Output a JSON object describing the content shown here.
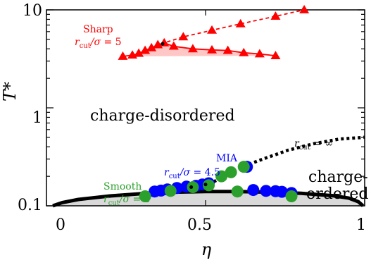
{
  "chart_data": {
    "type": "scatter",
    "xlabel": "η",
    "ylabel": "T*",
    "xlim": [
      0,
      1
    ],
    "ylim": [
      0.1,
      10
    ],
    "yscale": "log",
    "x_ticks": [
      "0",
      "0.5",
      "1"
    ],
    "y_ticks": [
      "0.1",
      "1",
      "10"
    ],
    "grid": false,
    "annotations": {
      "disordered": "charge-disordered",
      "ordered_line1": "charge-",
      "ordered_line2": "ordered",
      "rcut_inf": "r_cut = ∞"
    },
    "series": [
      {
        "name": "Sharp r_cut/σ = 5",
        "label_line1": "Sharp",
        "label_line2": "r_cut/σ = 5",
        "color": "#ff0000",
        "marker": "triangle",
        "points": [
          [
            0.24,
            3.35
          ],
          [
            0.27,
            3.45
          ],
          [
            0.29,
            3.6
          ],
          [
            0.31,
            3.85
          ],
          [
            0.33,
            4.1
          ],
          [
            0.35,
            4.4
          ],
          [
            0.37,
            4.6
          ],
          [
            0.4,
            4.25
          ],
          [
            0.46,
            4.0
          ],
          [
            0.52,
            3.9
          ],
          [
            0.57,
            3.85
          ],
          [
            0.62,
            3.65
          ],
          [
            0.67,
            3.55
          ],
          [
            0.72,
            3.4
          ]
        ],
        "critical_line": [
          [
            0.36,
            4.5
          ],
          [
            0.43,
            5.3
          ],
          [
            0.52,
            6.2
          ],
          [
            0.61,
            7.2
          ],
          [
            0.72,
            8.6
          ],
          [
            0.81,
            10
          ]
        ]
      },
      {
        "name": "MIA r_cut/σ = 4.5",
        "label_line1": "MIA",
        "label_line2": "r_cut/σ = 4.5",
        "color": "#0000ff",
        "marker": "circle",
        "points": [
          [
            0.34,
            0.14
          ],
          [
            0.36,
            0.143
          ],
          [
            0.38,
            0.147
          ],
          [
            0.41,
            0.152
          ],
          [
            0.44,
            0.157
          ],
          [
            0.47,
            0.16
          ],
          [
            0.49,
            0.165
          ],
          [
            0.51,
            0.17
          ],
          [
            0.63,
            0.25
          ],
          [
            0.65,
            0.145
          ],
          [
            0.69,
            0.142
          ],
          [
            0.72,
            0.141
          ],
          [
            0.74,
            0.139
          ],
          [
            0.77,
            0.135
          ]
        ]
      },
      {
        "name": "Smooth r_cut/σ = 5",
        "label_line1": "Smooth",
        "label_line2": "r_cut/σ = 5",
        "color": "#2ca02c",
        "marker": "circle",
        "points": [
          [
            0.31,
            0.125
          ],
          [
            0.39,
            0.142
          ],
          [
            0.46,
            0.155
          ],
          [
            0.51,
            0.162
          ],
          [
            0.55,
            0.2
          ],
          [
            0.58,
            0.22
          ],
          [
            0.62,
            0.25
          ],
          [
            0.6,
            0.14
          ],
          [
            0.77,
            0.125
          ]
        ]
      }
    ],
    "rcut_inf_line": [
      [
        0.51,
        0.165
      ],
      [
        0.6,
        0.24
      ],
      [
        0.68,
        0.3
      ],
      [
        0.76,
        0.37
      ],
      [
        0.84,
        0.43
      ],
      [
        0.92,
        0.48
      ],
      [
        1.0,
        0.5
      ]
    ],
    "coexistence_curve": [
      [
        0.02,
        0.1
      ],
      [
        0.05,
        0.108
      ],
      [
        0.1,
        0.116
      ],
      [
        0.2,
        0.126
      ],
      [
        0.3,
        0.133
      ],
      [
        0.4,
        0.138
      ],
      [
        0.5,
        0.14
      ],
      [
        0.6,
        0.14
      ],
      [
        0.7,
        0.138
      ],
      [
        0.8,
        0.134
      ],
      [
        0.9,
        0.127
      ],
      [
        0.95,
        0.12
      ],
      [
        0.98,
        0.11
      ],
      [
        0.995,
        0.1
      ]
    ],
    "critical_points": [
      {
        "series": "Sharp r_cut/σ = 5",
        "x": 0.365,
        "y": 4.5
      },
      {
        "series": "MIA r_cut/σ = 4.5",
        "x": 0.5,
        "y": 0.165
      },
      {
        "series": "Smooth r_cut/σ = 5",
        "x": 0.455,
        "y": 0.155
      }
    ]
  }
}
